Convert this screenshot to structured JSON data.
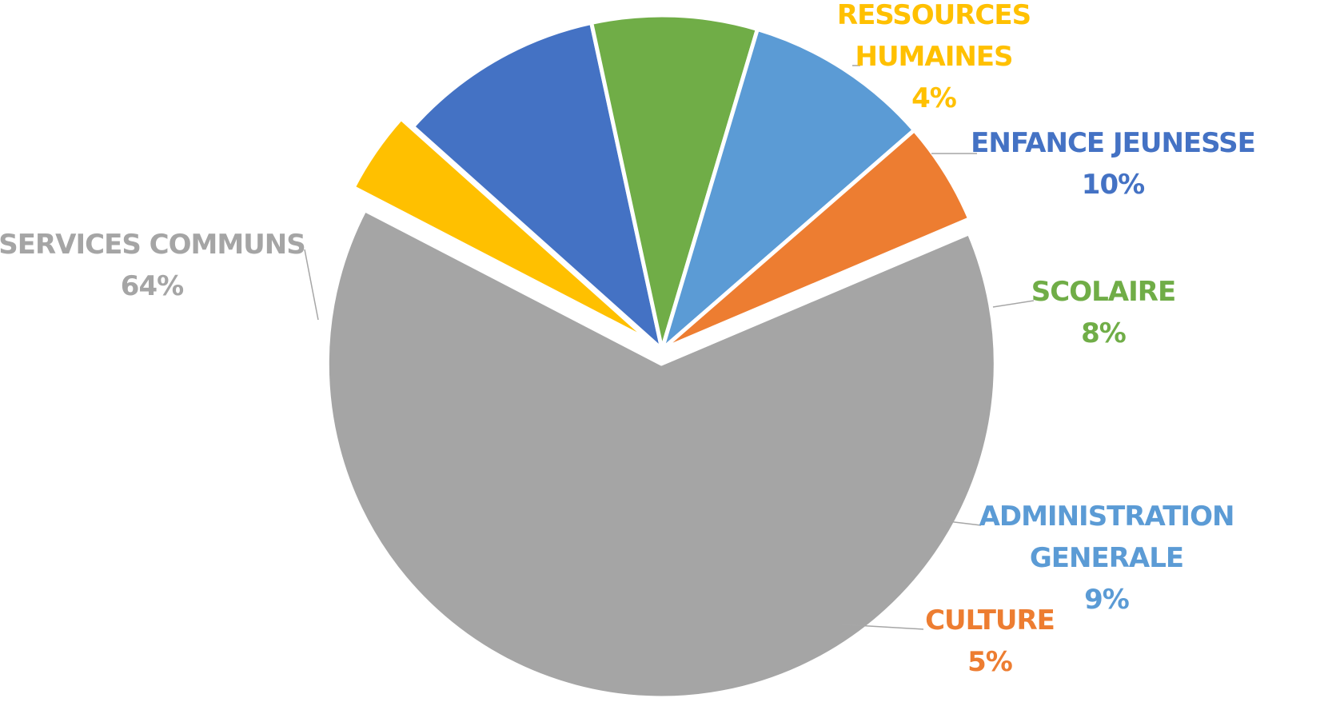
{
  "chart_data": {
    "type": "pie",
    "title": "",
    "slices": [
      {
        "label": [
          "RESSOURCES",
          "HUMAINES"
        ],
        "value": 4,
        "value_label": "4%",
        "color": "#FFC000"
      },
      {
        "label": [
          "ENFANCE JEUNESSE"
        ],
        "value": 10,
        "value_label": "10%",
        "color": "#4472C4"
      },
      {
        "label": [
          "SCOLAIRE"
        ],
        "value": 8,
        "value_label": "8%",
        "color": "#70AD47"
      },
      {
        "label": [
          "ADMINISTRATION",
          "GENERALE"
        ],
        "value": 9,
        "value_label": "9%",
        "color": "#5B9BD5"
      },
      {
        "label": [
          "CULTURE"
        ],
        "value": 5,
        "value_label": "5%",
        "color": "#ED7D31"
      },
      {
        "label": [
          "SERVICES COMMUNS"
        ],
        "value": 64,
        "value_label": "64%",
        "color": "#A5A5A5"
      }
    ],
    "legend": "none",
    "data_labels": "outside-with-leader-lines"
  }
}
